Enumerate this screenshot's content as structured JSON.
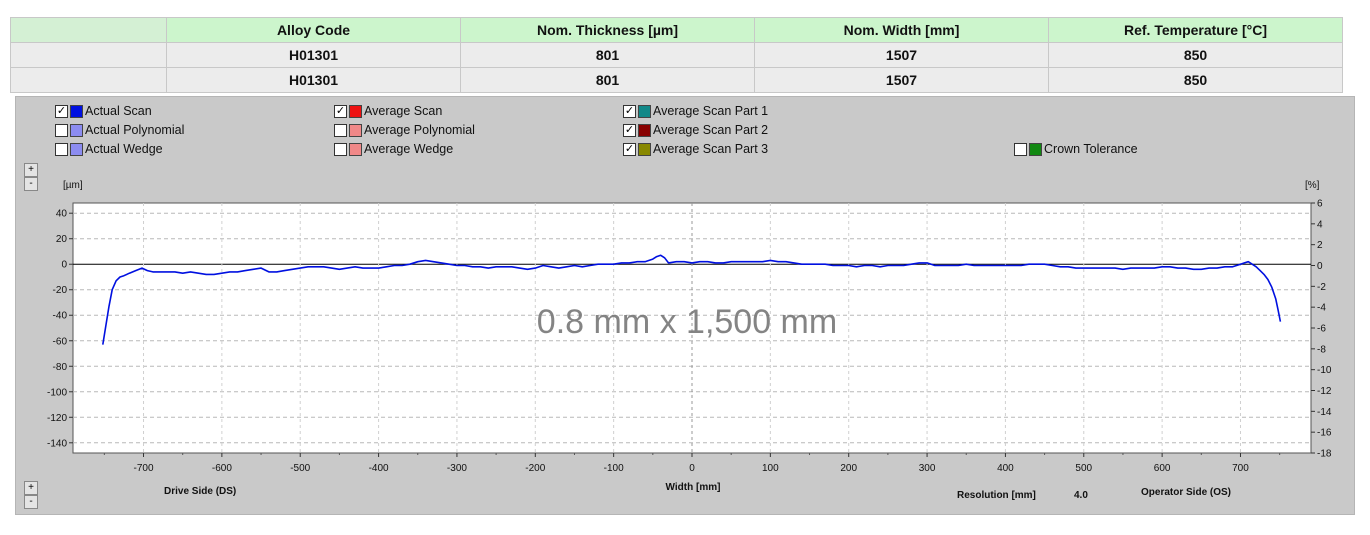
{
  "table": {
    "headers": [
      "Alloy Code",
      "Nom. Thickness [µm]",
      "Nom. Width [mm]",
      "Ref. Temperature [°C]"
    ],
    "rows": [
      [
        "H01301",
        "801",
        "1507",
        "850"
      ],
      [
        "H01301",
        "801",
        "1507",
        "850"
      ]
    ]
  },
  "legend": [
    {
      "label": "Actual Scan",
      "checked": true,
      "color": "#0010e0"
    },
    {
      "label": "Actual Polynomial",
      "checked": false,
      "color": "#8c8cf0"
    },
    {
      "label": "Actual Wedge",
      "checked": false,
      "color": "#8c8cf0"
    },
    {
      "label": "Average Scan",
      "checked": true,
      "color": "#ee1111"
    },
    {
      "label": "Average Polynomial",
      "checked": false,
      "color": "#f08888"
    },
    {
      "label": "Average Wedge",
      "checked": false,
      "color": "#f08888"
    },
    {
      "label": "Average Scan Part 1",
      "checked": true,
      "color": "#118888"
    },
    {
      "label": "Average Scan Part 2",
      "checked": true,
      "color": "#880000"
    },
    {
      "label": "Average Scan Part 3",
      "checked": true,
      "color": "#888800"
    },
    {
      "label": "Crown Tolerance",
      "checked": false,
      "color": "#118811"
    }
  ],
  "zoom": {
    "plus": "+",
    "minus": "-"
  },
  "check_mark": "✓",
  "chart_data": {
    "type": "line",
    "ylabel": "[µm]",
    "y2label": "[%]",
    "xlabel": "Width [mm]",
    "left_side_label": "Drive Side (DS)",
    "right_side_label": "Operator Side (OS)",
    "resolution_label": "Resolution [mm]",
    "resolution_value": "4.0",
    "overlay_text": "0.8 mm x 1,500 mm",
    "xlim": [
      -790,
      790
    ],
    "ylim": [
      -148,
      48
    ],
    "y2lim": [
      -18,
      6
    ],
    "xticks": [
      -700,
      -600,
      -500,
      -400,
      -300,
      -200,
      -100,
      0,
      100,
      200,
      300,
      400,
      500,
      600,
      700
    ],
    "yticks": [
      40,
      20,
      0,
      -20,
      -40,
      -60,
      -80,
      -100,
      -120,
      -140
    ],
    "y2ticks": [
      6,
      4,
      2,
      0,
      -2,
      -4,
      -6,
      -8,
      -10,
      -12,
      -14,
      -16,
      -18
    ],
    "grid": true,
    "series": [
      {
        "name": "Actual Scan",
        "color": "#0010e0",
        "x": [
          -752,
          -748,
          -744,
          -740,
          -735,
          -730,
          -725,
          -718,
          -710,
          -702,
          -695,
          -688,
          -680,
          -670,
          -660,
          -650,
          -640,
          -630,
          -620,
          -610,
          -600,
          -590,
          -580,
          -570,
          -560,
          -550,
          -540,
          -530,
          -520,
          -510,
          -500,
          -490,
          -480,
          -470,
          -460,
          -450,
          -440,
          -430,
          -420,
          -410,
          -400,
          -390,
          -380,
          -370,
          -360,
          -350,
          -340,
          -330,
          -320,
          -310,
          -300,
          -290,
          -280,
          -270,
          -260,
          -250,
          -240,
          -230,
          -220,
          -210,
          -200,
          -190,
          -180,
          -170,
          -160,
          -150,
          -140,
          -130,
          -120,
          -110,
          -100,
          -90,
          -80,
          -70,
          -60,
          -50,
          -45,
          -40,
          -35,
          -30,
          -20,
          -10,
          0,
          10,
          20,
          30,
          40,
          50,
          60,
          70,
          80,
          90,
          100,
          110,
          120,
          130,
          140,
          150,
          160,
          170,
          180,
          190,
          200,
          210,
          220,
          230,
          240,
          250,
          260,
          270,
          280,
          290,
          300,
          310,
          320,
          330,
          340,
          350,
          360,
          370,
          380,
          390,
          400,
          410,
          420,
          430,
          440,
          450,
          460,
          470,
          480,
          490,
          500,
          510,
          520,
          530,
          540,
          550,
          560,
          570,
          580,
          590,
          600,
          610,
          620,
          630,
          640,
          650,
          660,
          670,
          680,
          690,
          700,
          705,
          710,
          715,
          720,
          725,
          730,
          735,
          740,
          745,
          748,
          751
        ],
        "y": [
          -63,
          -48,
          -33,
          -20,
          -13,
          -10,
          -9,
          -7,
          -5,
          -3,
          -5,
          -6,
          -6,
          -6,
          -6,
          -7,
          -6,
          -7,
          -8,
          -8,
          -7,
          -6,
          -6,
          -5,
          -4,
          -3,
          -6,
          -6,
          -5,
          -4,
          -3,
          -2,
          -2,
          -2,
          -3,
          -4,
          -3,
          -2,
          -3,
          -3,
          -3,
          -2,
          -1,
          -1,
          0,
          2,
          3,
          2,
          1,
          0,
          -1,
          -1,
          -2,
          -2,
          -3,
          -2,
          -2,
          -2,
          -3,
          -4,
          -3,
          -1,
          -2,
          -3,
          -2,
          -1,
          -2,
          -1,
          0,
          0,
          0,
          1,
          1,
          2,
          2,
          4,
          6,
          7,
          5,
          1,
          2,
          2,
          1,
          2,
          2,
          1,
          1,
          2,
          2,
          2,
          2,
          2,
          3,
          2,
          2,
          1,
          0,
          0,
          0,
          0,
          -1,
          -1,
          -1,
          -2,
          -1,
          -1,
          -2,
          -1,
          -1,
          -1,
          0,
          1,
          1,
          -1,
          -1,
          -1,
          -1,
          0,
          -1,
          -1,
          -1,
          -1,
          -1,
          -1,
          -1,
          0,
          0,
          0,
          -1,
          -2,
          -2,
          -3,
          -3,
          -3,
          -3,
          -3,
          -3,
          -4,
          -3,
          -3,
          -3,
          -3,
          -2,
          -2,
          -3,
          -3,
          -4,
          -4,
          -3,
          -3,
          -2,
          -2,
          0,
          1,
          2,
          0,
          -2,
          -5,
          -8,
          -12,
          -18,
          -27,
          -36,
          -45
        ]
      }
    ]
  }
}
